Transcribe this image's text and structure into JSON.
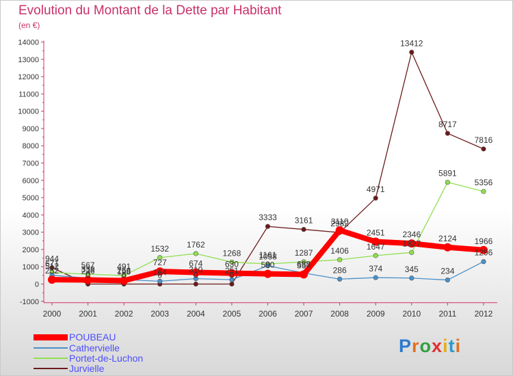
{
  "chart_data": {
    "type": "line",
    "title": "Evolution du Montant de la Dette par Habitant",
    "subtitle": "(en €)",
    "x": [
      "2000",
      "2001",
      "2002",
      "2003",
      "2004",
      "2005",
      "2006",
      "2007",
      "2008",
      "2009",
      "2010",
      "2011",
      "2012"
    ],
    "ylim": [
      -1000,
      14000
    ],
    "yticks": [
      -1000,
      0,
      1000,
      2000,
      3000,
      4000,
      5000,
      6000,
      7000,
      8000,
      9000,
      10000,
      11000,
      12000,
      13000,
      14000
    ],
    "grid": false,
    "legend_position": "bottom-left",
    "series": [
      {
        "name": "POUBEAU",
        "color": "#ff0000",
        "values": [
          252,
          236,
          198,
          727,
          674,
          630,
          590,
          557,
          3110,
          2451,
          2346,
          2124,
          1966
        ],
        "labels": false
      },
      {
        "name": "Cathervielle",
        "color": "#4a90c8",
        "values": [
          512,
          339,
          256,
          164,
          310,
          251,
          1058,
          638,
          286,
          374,
          345,
          234,
          1296
        ],
        "labels": true
      },
      {
        "name": "Portet-de-Luchon",
        "color": "#90e050",
        "values": [
          671,
          567,
          491,
          1532,
          1762,
          1268,
          1161,
          1287,
          1406,
          1647,
          1827,
          5891,
          5356
        ],
        "labels": true
      },
      {
        "name": "Jurvielle",
        "color": "#6b1a1a",
        "values": [
          944,
          0,
          0,
          0,
          0,
          0,
          3333,
          3161,
          2982,
          4971,
          13412,
          8717,
          7816
        ],
        "labels": true
      }
    ],
    "label_text": {
      "POUBEAU": [
        "252",
        "236",
        "198",
        "727",
        "674",
        "630",
        "590",
        "557",
        "3110",
        "2451",
        "2346",
        "2124",
        "1966"
      ],
      "Cathervielle": [
        "512",
        "339",
        "256",
        "164",
        "310",
        "251",
        "1058",
        "638",
        "286",
        "374",
        "345",
        "234",
        "1296"
      ],
      "Portet-de-Luchon": [
        "671",
        "567",
        "491",
        "1532",
        "1762",
        "1268",
        "1161",
        "1287",
        "1406",
        "1647",
        "1827",
        "5891",
        "5356"
      ],
      "Jurvielle": [
        "944",
        "0",
        "0",
        "0",
        "0",
        "0",
        "3333",
        "3161",
        "2982",
        "4971",
        "13412",
        "8717",
        "7816"
      ]
    }
  },
  "legend": [
    {
      "label": "POUBEAU"
    },
    {
      "label": "Cathervielle"
    },
    {
      "label": "Portet-de-Luchon"
    },
    {
      "label": "Jurvielle"
    }
  ],
  "logo": {
    "letters": [
      "P",
      "r",
      "o",
      "x",
      "i",
      "t",
      "i"
    ],
    "colors": [
      "#2a7ad0",
      "#e07020",
      "#30a040",
      "#e03030",
      "#e0b020",
      "#2a9ad0",
      "#e07020"
    ]
  }
}
